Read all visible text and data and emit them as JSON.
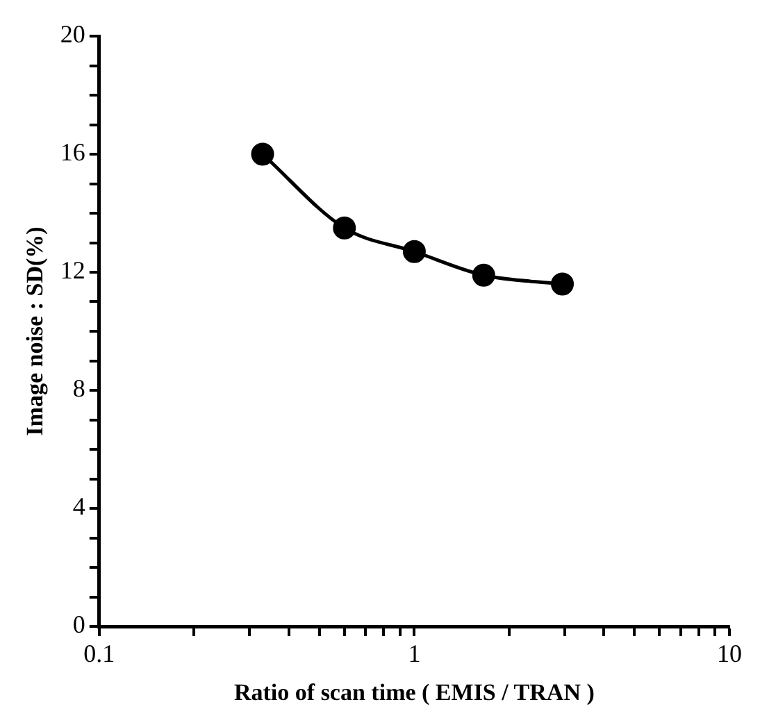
{
  "chart_data": {
    "type": "line",
    "xlabel": "Ratio of scan time ( EMIS / TRAN )",
    "ylabel": "Image noise : SD(%)",
    "x": [
      0.33,
      0.6,
      1.0,
      1.66,
      2.95
    ],
    "series": [
      {
        "color": "#000000",
        "values": [
          16,
          13.5,
          12.7,
          11.9,
          11.6
        ]
      }
    ],
    "log": "x",
    "xlim": [
      0.1,
      10
    ],
    "ylim": [
      0,
      20
    ],
    "xticks": [
      0.1,
      {
        "value": 0.2,
        "label": null
      },
      {
        "value": 0.3,
        "label": null
      },
      {
        "value": 0.4,
        "label": null
      },
      {
        "value": 0.5,
        "label": null
      },
      {
        "value": 0.6,
        "label": null
      },
      {
        "value": 0.7,
        "label": null
      },
      {
        "value": 0.8,
        "label": null
      },
      {
        "value": 0.9,
        "label": null
      },
      1,
      {
        "value": 2,
        "label": null
      },
      {
        "value": 3,
        "label": null
      },
      {
        "value": 4,
        "label": null
      },
      {
        "value": 5,
        "label": null
      },
      {
        "value": 6,
        "label": null
      },
      {
        "value": 7,
        "label": null
      },
      {
        "value": 8,
        "label": null
      },
      {
        "value": 9,
        "label": null
      },
      10
    ],
    "yticks": [
      0,
      {
        "value": 1,
        "label": null
      },
      {
        "value": 2,
        "label": null
      },
      {
        "value": 3,
        "label": null
      },
      4,
      {
        "value": 5,
        "label": null
      },
      {
        "value": 6,
        "label": null
      },
      {
        "value": 7,
        "label": null
      },
      8,
      {
        "value": 9,
        "label": null
      },
      {
        "value": 10,
        "label": null
      },
      {
        "value": 11,
        "label": null
      },
      12,
      {
        "value": 13,
        "label": null
      },
      {
        "value": 14,
        "label": null
      },
      {
        "value": 15,
        "label": null
      },
      16,
      {
        "value": 17,
        "label": null
      },
      {
        "value": 18,
        "label": null
      },
      {
        "value": 19,
        "label": null
      },
      20
    ],
    "grid": false,
    "legend": false,
    "marker": "circle",
    "line_style": "solid"
  }
}
